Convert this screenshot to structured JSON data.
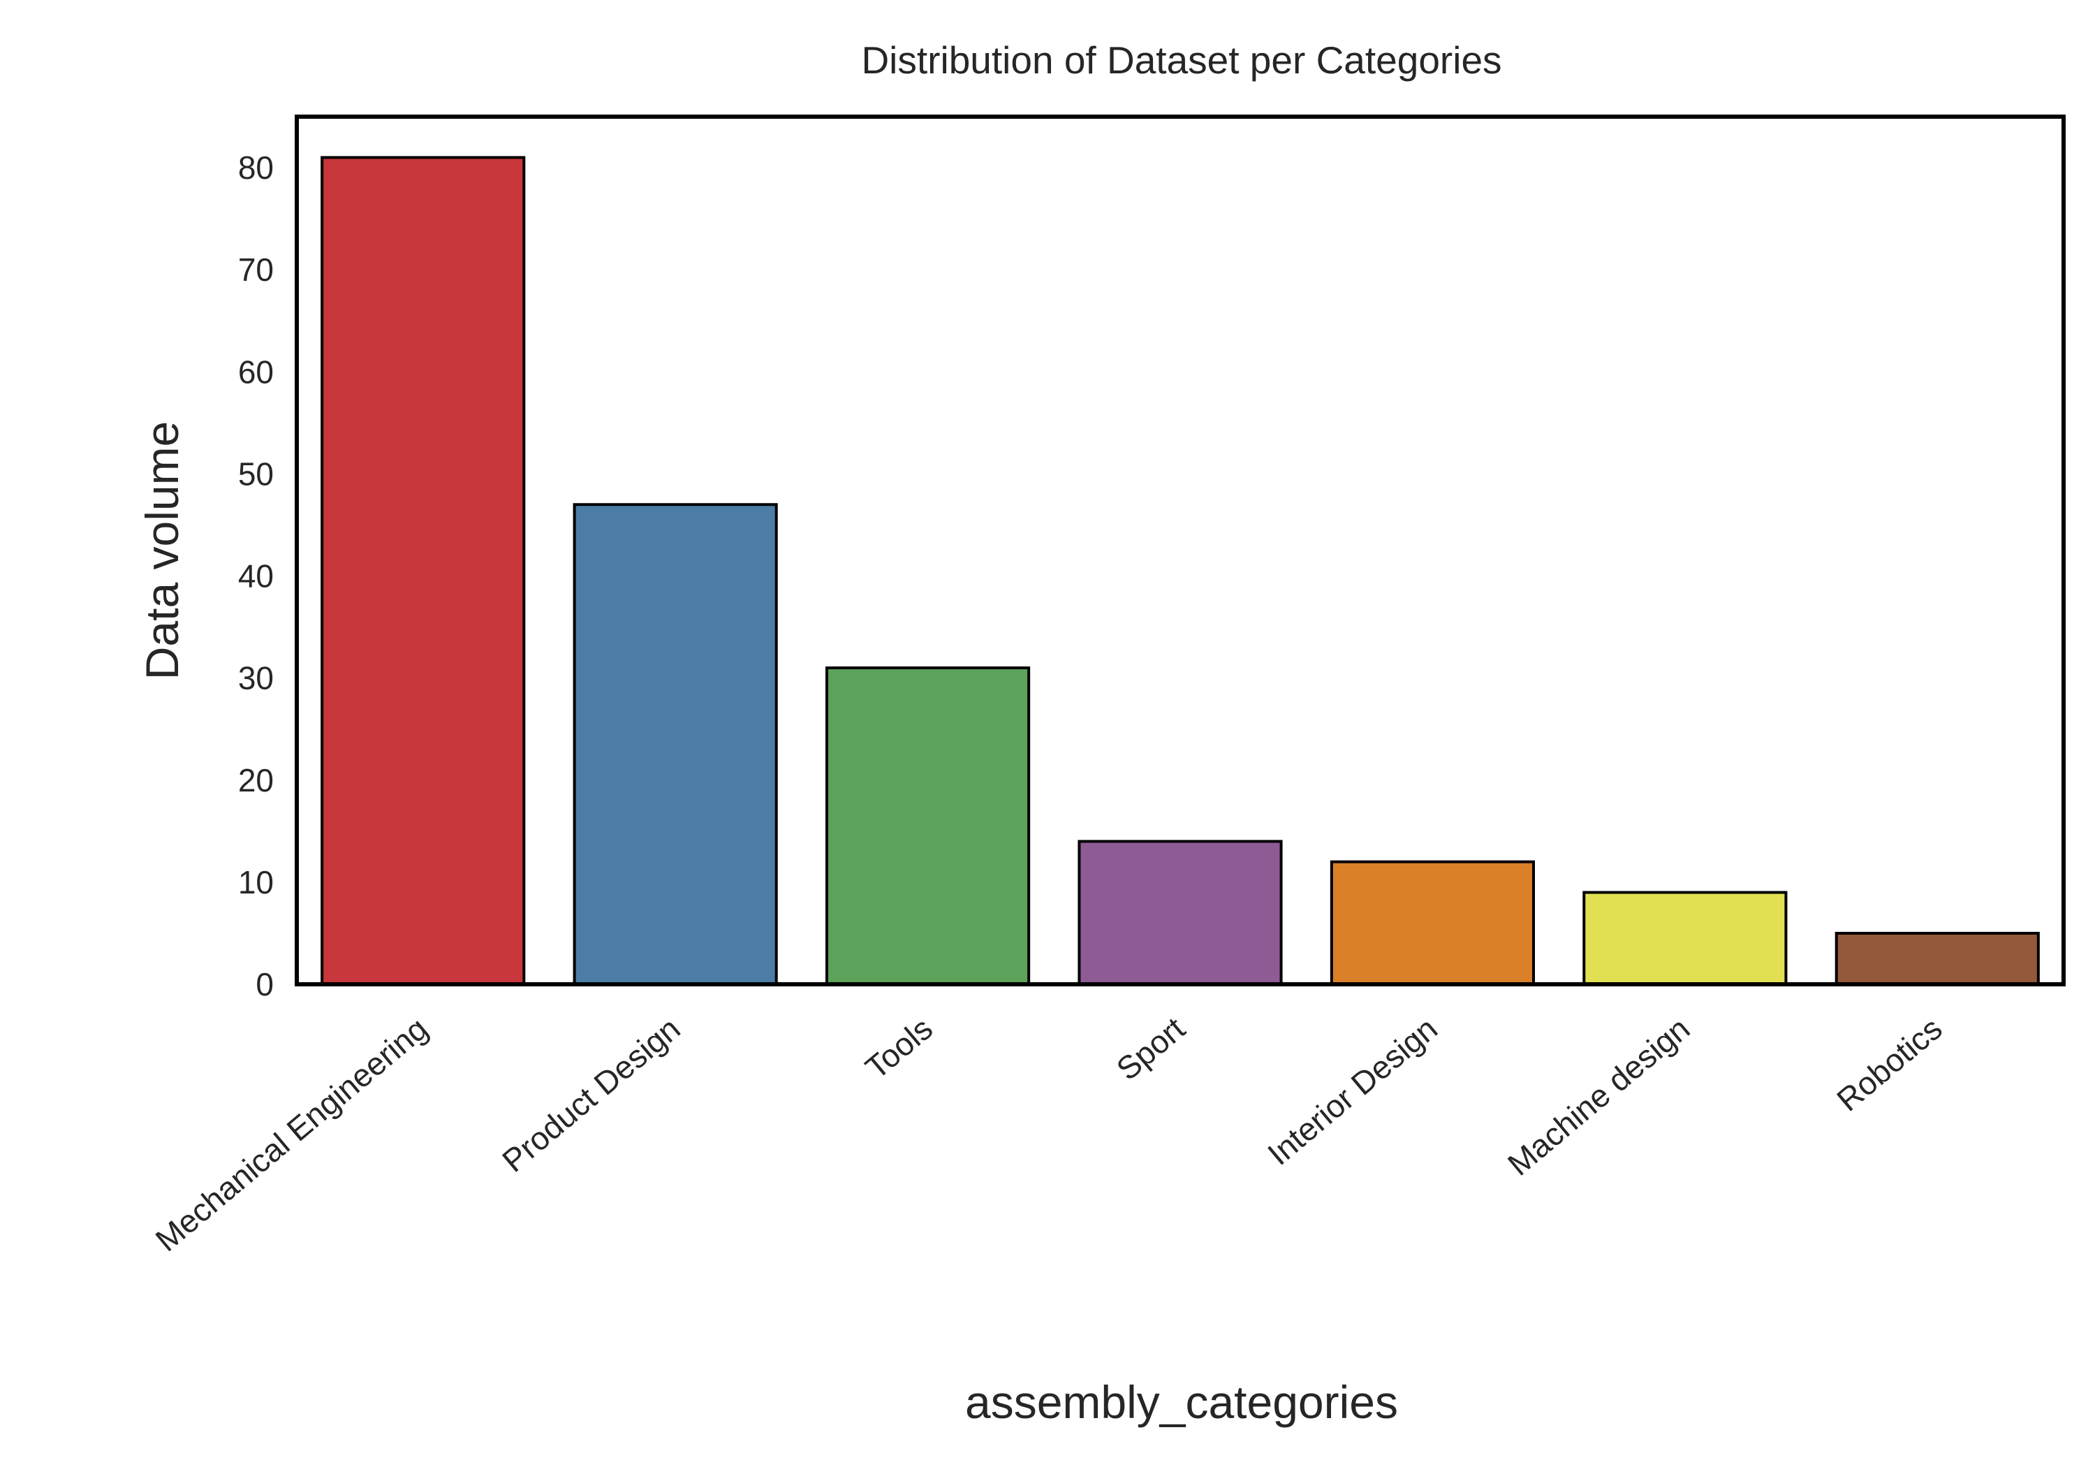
{
  "chart_data": {
    "type": "bar",
    "title": "Distribution of Dataset per Categories",
    "xlabel": "assembly_categories",
    "ylabel": "Data volume",
    "categories": [
      "Mechanical Engineering",
      "Product Design",
      "Tools",
      "Sport",
      "Interior Design",
      "Machine design",
      "Robotics"
    ],
    "values": [
      81,
      47,
      31,
      14,
      12,
      9,
      5
    ],
    "colors": [
      "#c8373b",
      "#4b7da6",
      "#5ca25a",
      "#8e5b95",
      "#d98028",
      "#e0e052",
      "#93593a"
    ],
    "ylim": [
      0,
      85
    ],
    "yticks": [
      0,
      10,
      20,
      30,
      40,
      50,
      60,
      70,
      80
    ],
    "grid": false,
    "legend": "none"
  }
}
